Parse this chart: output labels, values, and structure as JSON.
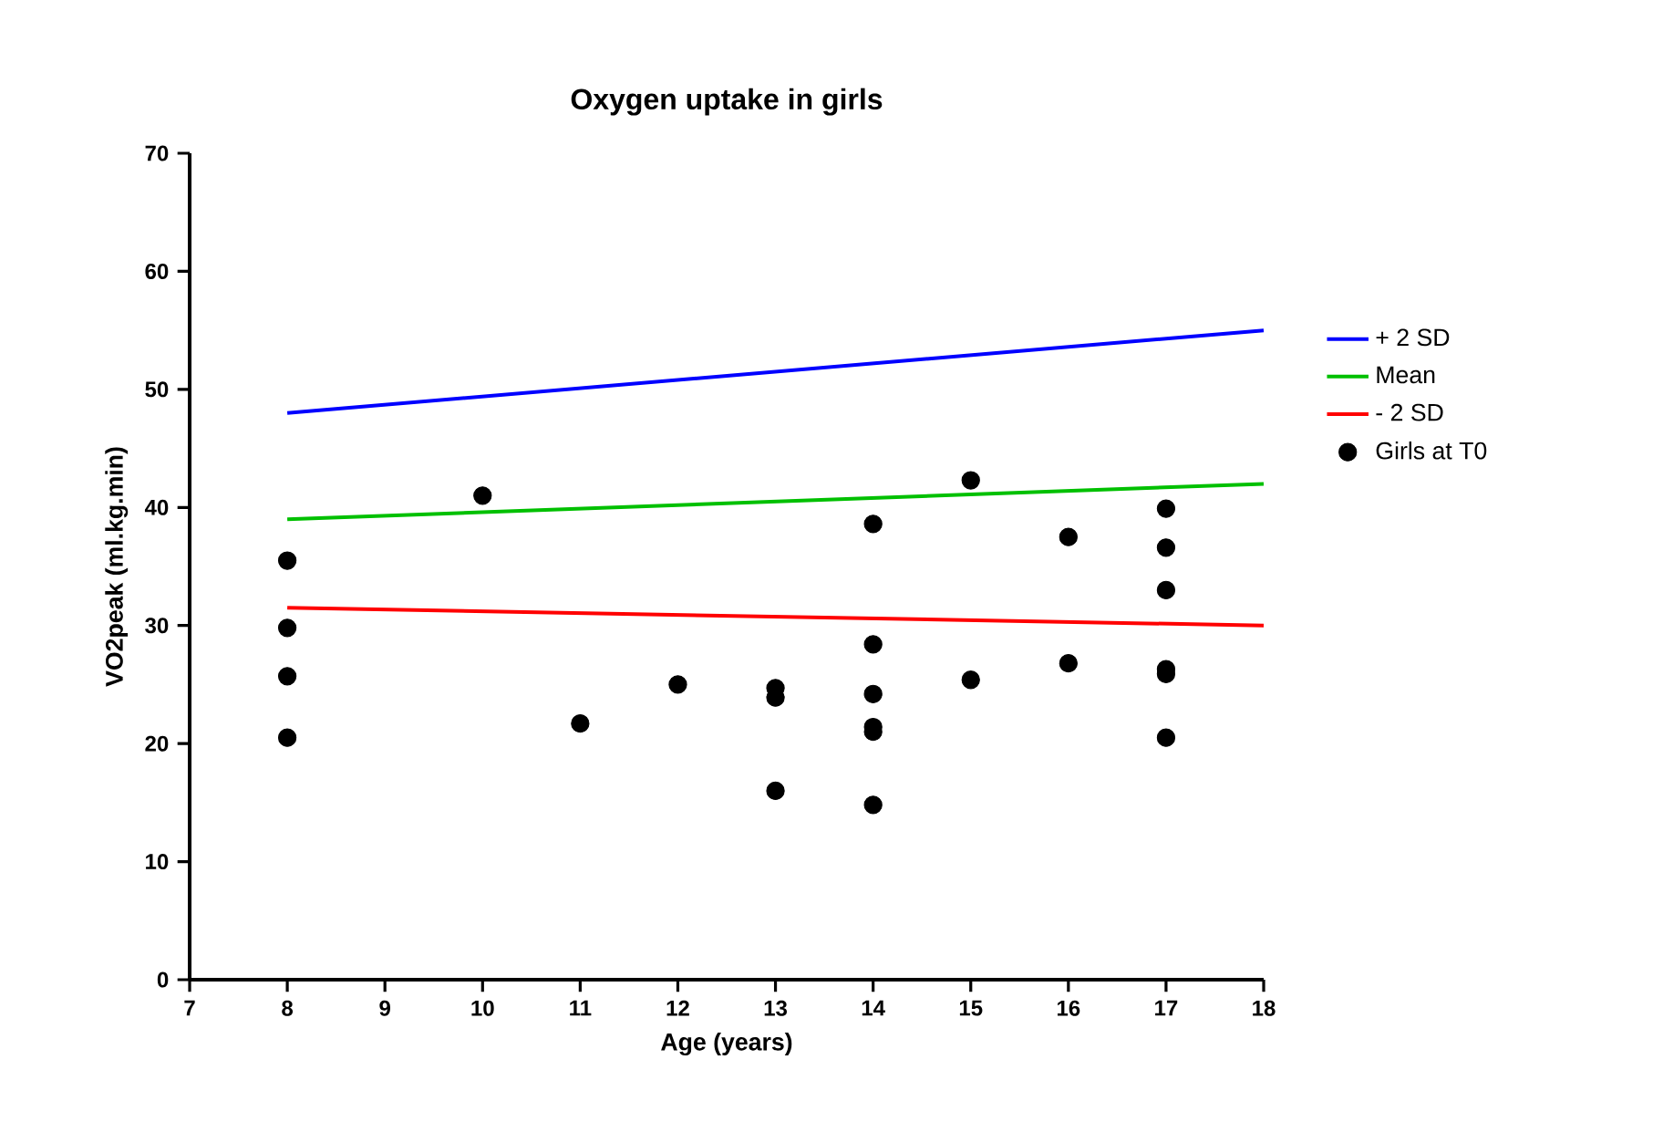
{
  "chart_data": {
    "type": "scatter",
    "title": "Oxygen uptake in girls",
    "xlabel": "Age (years)",
    "ylabel": "VO2peak (ml.kg.min)",
    "xlim": [
      7,
      18
    ],
    "xticks": [
      7,
      8,
      9,
      10,
      11,
      12,
      13,
      14,
      15,
      16,
      17,
      18
    ],
    "ylim": [
      0,
      70
    ],
    "yticks": [
      0,
      10,
      20,
      30,
      40,
      50,
      60,
      70
    ],
    "legend": "right",
    "grid": false,
    "series": [
      {
        "name": "+ 2 SD",
        "type": "line",
        "color": "#0000ff",
        "marker": "none",
        "line_style": "solid",
        "x": [
          8,
          18
        ],
        "values": [
          48,
          55
        ]
      },
      {
        "name": "Mean",
        "type": "line",
        "color": "#00c000",
        "marker": "none",
        "line_style": "solid",
        "x": [
          8,
          18
        ],
        "values": [
          39,
          42
        ]
      },
      {
        "name": "- 2 SD",
        "type": "line",
        "color": "#ff0000",
        "marker": "none",
        "line_style": "solid",
        "x": [
          8,
          18
        ],
        "values": [
          31.5,
          30
        ]
      },
      {
        "name": "Girls at T0",
        "color": "#000000",
        "marker": "circle",
        "x": [
          8,
          8,
          8,
          8,
          10,
          11,
          12,
          13,
          13,
          13,
          14,
          14,
          14,
          14,
          14,
          14,
          15,
          15,
          16,
          16,
          17,
          17,
          17,
          17,
          17,
          17
        ],
        "values": [
          35.5,
          29.8,
          25.7,
          20.5,
          41,
          21.7,
          25,
          24.7,
          23.9,
          16,
          38.6,
          28.4,
          24.2,
          21.4,
          21,
          14.8,
          42.3,
          25.4,
          37.5,
          26.8,
          39.9,
          36.6,
          33,
          26.3,
          25.9,
          20.5
        ]
      }
    ]
  }
}
